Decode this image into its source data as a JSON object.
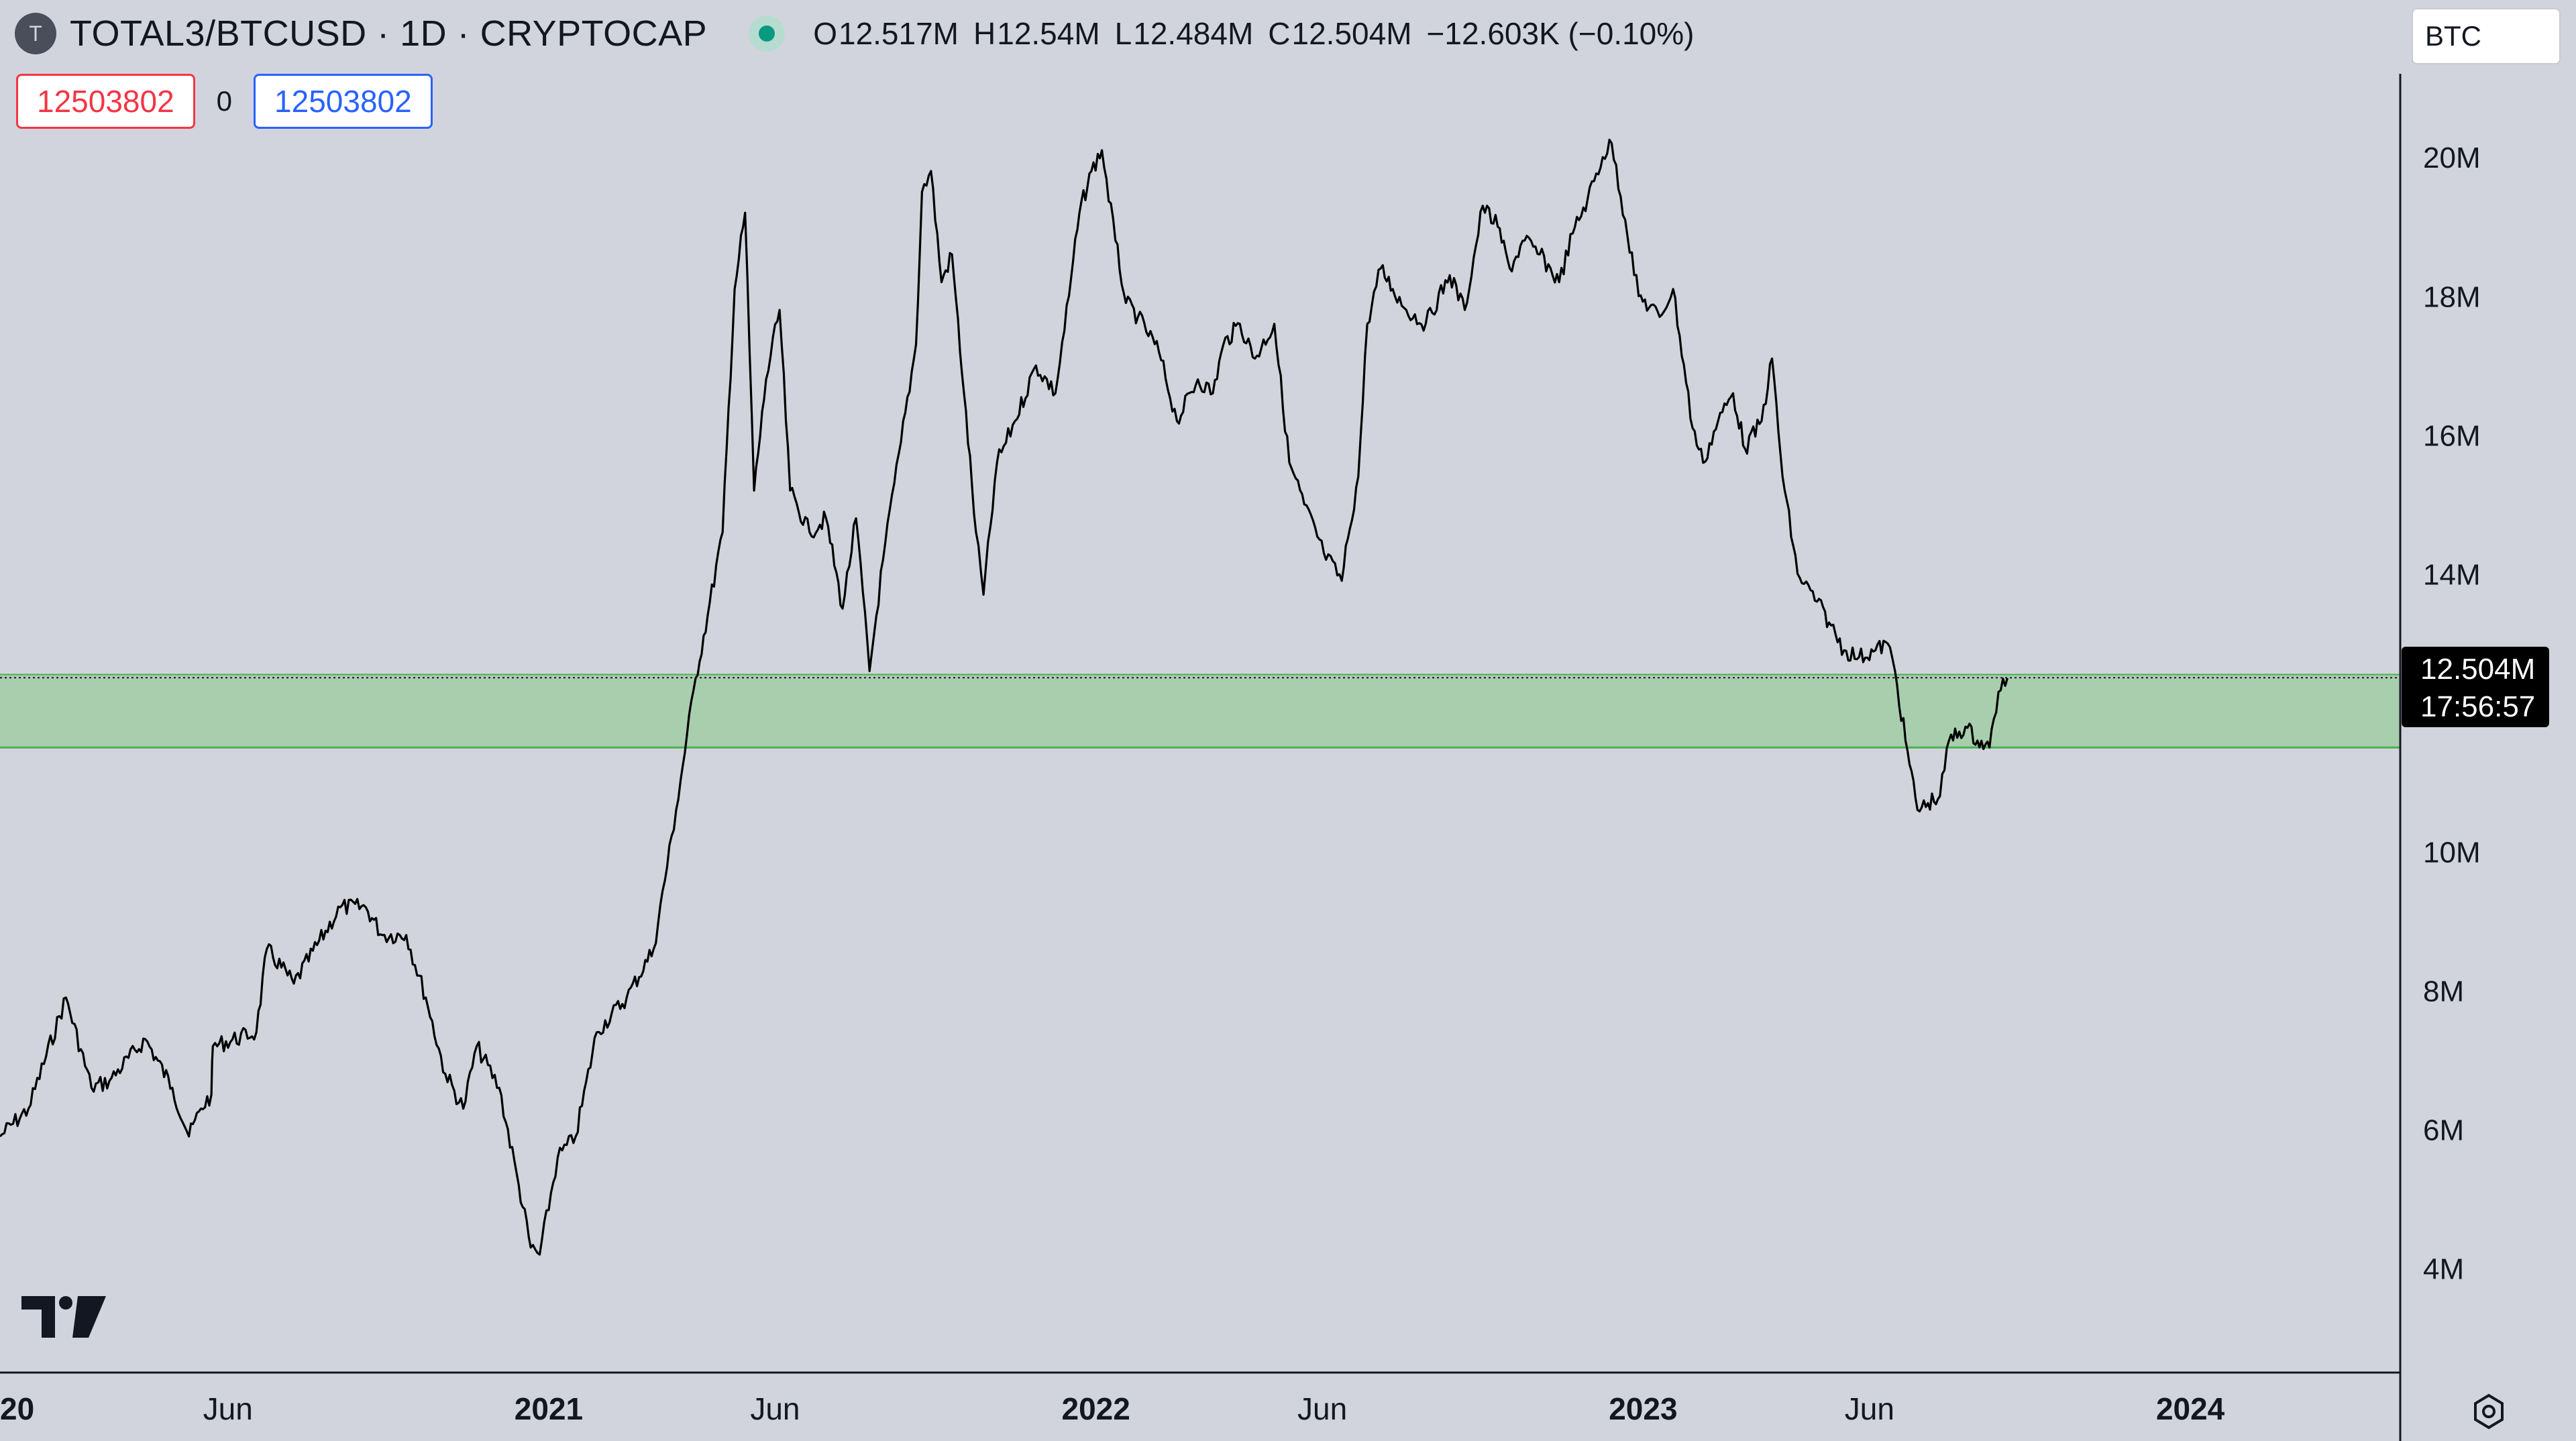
{
  "header": {
    "logo_letter": "T",
    "title": "TOTAL3/BTCUSD · 1D · CRYPTOCAP",
    "ohlc": [
      {
        "key": "O",
        "value": "12.517M"
      },
      {
        "key": "H",
        "value": "12.54M"
      },
      {
        "key": "L",
        "value": "12.484M"
      },
      {
        "key": "C",
        "value": "12.504M"
      }
    ],
    "change": "−12.603K (−0.10%)",
    "currency": "BTC"
  },
  "order_panel": {
    "sell_price": "12503802",
    "spread": "0",
    "buy_price": "12503802"
  },
  "price_label": {
    "price": "12.504M",
    "countdown": "17:56:57"
  },
  "colors": {
    "background": "#d1d4dc",
    "price_line": "#000000",
    "zone_fill": "#a8ceae",
    "zone_border": "#4caf50",
    "status_green": "#089981"
  },
  "chart_data": {
    "type": "line",
    "title": "TOTAL3/BTCUSD · 1D · CRYPTOCAP",
    "grid": false,
    "legend": "none",
    "y_scale": "linear",
    "ylim": [
      2500000,
      21200000
    ],
    "xlim": [
      "2020-01-01",
      "2024-05-20"
    ],
    "yticks": [
      {
        "value": 20000000,
        "label": "20M"
      },
      {
        "value": 18000000,
        "label": "18M"
      },
      {
        "value": 16000000,
        "label": "16M"
      },
      {
        "value": 14000000,
        "label": "14M"
      },
      {
        "value": 10000000,
        "label": "10M"
      },
      {
        "value": 8000000,
        "label": "8M"
      },
      {
        "value": 6000000,
        "label": "6M"
      },
      {
        "value": 4000000,
        "label": "4M"
      }
    ],
    "xticks": [
      {
        "date": "2020-01-01",
        "label": "2020",
        "bold": true
      },
      {
        "date": "2020-06-01",
        "label": "Jun",
        "bold": false
      },
      {
        "date": "2021-01-01",
        "label": "2021",
        "bold": true
      },
      {
        "date": "2021-06-01",
        "label": "Jun",
        "bold": false
      },
      {
        "date": "2022-01-01",
        "label": "2022",
        "bold": true
      },
      {
        "date": "2022-06-01",
        "label": "Jun",
        "bold": false
      },
      {
        "date": "2023-01-01",
        "label": "2023",
        "bold": true
      },
      {
        "date": "2023-06-01",
        "label": "Jun",
        "bold": false
      },
      {
        "date": "2024-01-01",
        "label": "2024",
        "bold": true
      }
    ],
    "support_zone": {
      "from": 11500000,
      "to": 12550000
    },
    "last_price": 12504000,
    "series": [
      {
        "points": [
          [
            "2020-01-01",
            5.9
          ],
          [
            "2020-01-20",
            6.3
          ],
          [
            "2020-02-14",
            7.9
          ],
          [
            "2020-03-02",
            6.6
          ],
          [
            "2020-03-14",
            6.7
          ],
          [
            "2020-04-07",
            7.3
          ],
          [
            "2020-04-25",
            6.6
          ],
          [
            "2020-05-06",
            5.9
          ],
          [
            "2020-05-14",
            6.3
          ],
          [
            "2020-05-21",
            6.5
          ],
          [
            "2020-05-22",
            7.2
          ],
          [
            "2020-06-20",
            7.4
          ],
          [
            "2020-06-27",
            8.6
          ],
          [
            "2020-07-15",
            8.1
          ],
          [
            "2020-08-15",
            9.2
          ],
          [
            "2020-09-01",
            9.2
          ],
          [
            "2020-09-12",
            8.8
          ],
          [
            "2020-09-28",
            8.8
          ],
          [
            "2020-10-11",
            7.9
          ],
          [
            "2020-10-24",
            6.8
          ],
          [
            "2020-11-05",
            6.3
          ],
          [
            "2020-11-14",
            7.2
          ],
          [
            "2020-11-29",
            6.6
          ],
          [
            "2020-12-12",
            5.2
          ],
          [
            "2020-12-20",
            4.3
          ],
          [
            "2020-12-26",
            4.2
          ],
          [
            "2021-01-07",
            5.6
          ],
          [
            "2021-01-19",
            5.9
          ],
          [
            "2021-02-02",
            7.4
          ],
          [
            "2021-02-22",
            7.9
          ],
          [
            "2021-03-12",
            8.6
          ],
          [
            "2021-03-27",
            10.6
          ],
          [
            "2021-04-09",
            12.5
          ],
          [
            "2021-04-17",
            13.4
          ],
          [
            "2021-04-27",
            14.6
          ],
          [
            "2021-05-05",
            18.1
          ],
          [
            "2021-05-12",
            19.2
          ],
          [
            "2021-05-18",
            15.2
          ],
          [
            "2021-05-26",
            16.8
          ],
          [
            "2021-06-04",
            17.8
          ],
          [
            "2021-06-11",
            15.2
          ],
          [
            "2021-06-24",
            14.6
          ],
          [
            "2021-07-05",
            14.8
          ],
          [
            "2021-07-16",
            13.5
          ],
          [
            "2021-07-25",
            14.8
          ],
          [
            "2021-08-03",
            12.6
          ],
          [
            "2021-08-12",
            14.2
          ],
          [
            "2021-08-24",
            15.9
          ],
          [
            "2021-09-03",
            17.3
          ],
          [
            "2021-09-07",
            19.5
          ],
          [
            "2021-09-13",
            19.8
          ],
          [
            "2021-09-20",
            18.2
          ],
          [
            "2021-09-27",
            18.6
          ],
          [
            "2021-10-05",
            16.6
          ],
          [
            "2021-10-13",
            14.6
          ],
          [
            "2021-10-18",
            13.7
          ],
          [
            "2021-10-27",
            15.6
          ],
          [
            "2021-11-08",
            16.2
          ],
          [
            "2021-11-22",
            17.0
          ],
          [
            "2021-12-05",
            16.6
          ],
          [
            "2021-12-14",
            18.0
          ],
          [
            "2021-12-21",
            19.2
          ],
          [
            "2021-12-29",
            19.8
          ],
          [
            "2022-01-05",
            20.1
          ],
          [
            "2022-01-14",
            18.8
          ],
          [
            "2022-01-21",
            17.9
          ],
          [
            "2022-01-29",
            17.7
          ],
          [
            "2022-02-12",
            17.2
          ],
          [
            "2022-02-24",
            16.2
          ],
          [
            "2022-03-10",
            16.8
          ],
          [
            "2022-03-20",
            16.6
          ],
          [
            "2022-03-27",
            17.3
          ],
          [
            "2022-04-07",
            17.6
          ],
          [
            "2022-04-17",
            17.1
          ],
          [
            "2022-04-30",
            17.6
          ],
          [
            "2022-05-10",
            15.6
          ],
          [
            "2022-05-20",
            15.0
          ],
          [
            "2022-06-02",
            14.3
          ],
          [
            "2022-06-14",
            13.9
          ],
          [
            "2022-06-18",
            14.5
          ],
          [
            "2022-06-25",
            15.4
          ],
          [
            "2022-07-01",
            17.6
          ],
          [
            "2022-07-10",
            18.4
          ],
          [
            "2022-07-18",
            18.1
          ],
          [
            "2022-07-27",
            17.8
          ],
          [
            "2022-08-09",
            17.6
          ],
          [
            "2022-08-25",
            18.3
          ],
          [
            "2022-09-04",
            17.8
          ],
          [
            "2022-09-16",
            19.3
          ],
          [
            "2022-09-26",
            19.0
          ],
          [
            "2022-10-04",
            18.4
          ],
          [
            "2022-10-14",
            18.8
          ],
          [
            "2022-10-24",
            18.6
          ],
          [
            "2022-11-06",
            18.2
          ],
          [
            "2022-11-15",
            18.9
          ],
          [
            "2022-11-25",
            19.4
          ],
          [
            "2022-12-05",
            20.0
          ],
          [
            "2022-12-11",
            20.2
          ],
          [
            "2022-12-20",
            19.1
          ],
          [
            "2022-12-29",
            18.0
          ],
          [
            "2023-01-12",
            17.7
          ],
          [
            "2023-01-21",
            18.1
          ],
          [
            "2023-02-03",
            16.1
          ],
          [
            "2023-02-10",
            15.6
          ],
          [
            "2023-02-20",
            16.2
          ],
          [
            "2023-03-02",
            16.6
          ],
          [
            "2023-03-10",
            15.8
          ],
          [
            "2023-03-21",
            16.2
          ],
          [
            "2023-03-28",
            17.1
          ],
          [
            "2023-04-04",
            15.4
          ],
          [
            "2023-04-14",
            14.0
          ],
          [
            "2023-04-27",
            13.6
          ],
          [
            "2023-05-05",
            13.3
          ],
          [
            "2023-05-15",
            12.9
          ],
          [
            "2023-05-25",
            12.8
          ],
          [
            "2023-06-05",
            12.9
          ],
          [
            "2023-06-13",
            13.0
          ],
          [
            "2023-06-18",
            12.6
          ],
          [
            "2023-06-25",
            11.6
          ],
          [
            "2023-07-03",
            10.6
          ],
          [
            "2023-07-10",
            10.7
          ],
          [
            "2023-07-18",
            10.8
          ],
          [
            "2023-07-24",
            11.6
          ],
          [
            "2023-08-04",
            11.8
          ],
          [
            "2023-08-12",
            11.6
          ],
          [
            "2023-08-20",
            11.5
          ],
          [
            "2023-08-26",
            12.3
          ],
          [
            "2023-09-01",
            12.5
          ]
        ]
      }
    ]
  }
}
